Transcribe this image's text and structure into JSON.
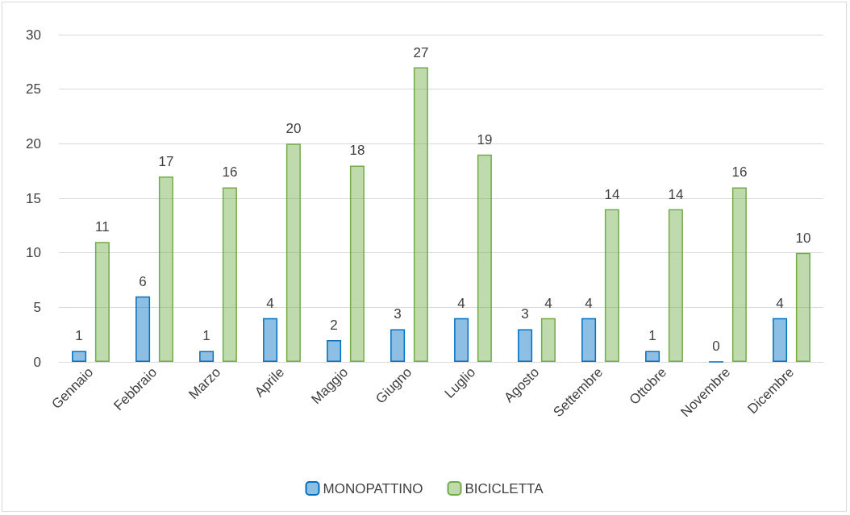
{
  "chart_data": {
    "type": "bar",
    "categories": [
      "Gennaio",
      "Febbraio",
      "Marzo",
      "Aprile",
      "Maggio",
      "Giugno",
      "Luglio",
      "Agosto",
      "Settembre",
      "Ottobre",
      "Novembre",
      "Dicembre"
    ],
    "series": [
      {
        "name": "MONOPATTINO",
        "color": "#0070c0",
        "values": [
          1,
          6,
          1,
          4,
          2,
          3,
          4,
          3,
          4,
          1,
          0,
          4
        ]
      },
      {
        "name": "BICICLETTA",
        "color": "#70ad47",
        "values": [
          11,
          17,
          16,
          20,
          18,
          27,
          19,
          4,
          14,
          14,
          16,
          10
        ]
      }
    ],
    "ylim": [
      0,
      30
    ],
    "yticks": [
      0,
      5,
      10,
      15,
      20,
      25,
      30
    ],
    "grid": "y",
    "legend": "bottom",
    "data_labels": true
  }
}
